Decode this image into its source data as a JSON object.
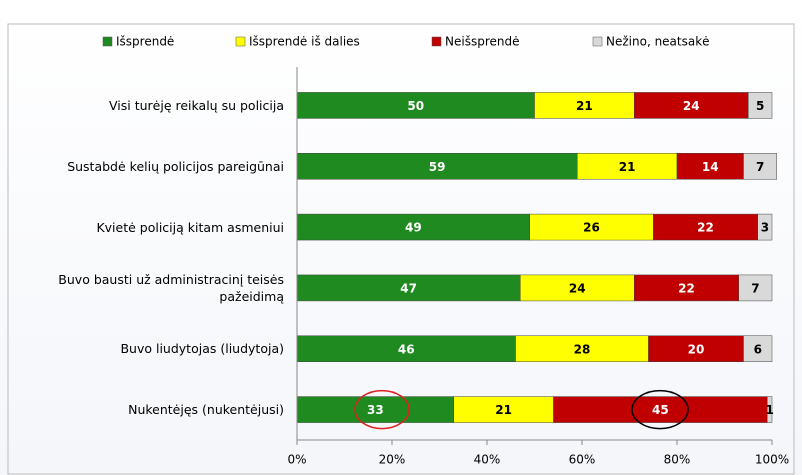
{
  "chart_data": {
    "type": "stacked-bar-horizontal",
    "categories": [
      "Visi turėję reikalų su policija",
      "Sustabdė kelių policijos pareigūnai",
      "Kvietė policiją kitam asmeniui",
      "Buvo bausti už administracinį teisės pažeidimą",
      "Buvo liudytojas (liudytoja)",
      "Nukentėjęs (nukentėjusi)"
    ],
    "series": [
      {
        "name": "Išsprendė",
        "color": "#1f8a1f",
        "values": [
          50,
          59,
          49,
          47,
          46,
          33
        ]
      },
      {
        "name": "Išsprendė iš dalies",
        "color": "#ffff00",
        "values": [
          21,
          21,
          26,
          24,
          28,
          21
        ]
      },
      {
        "name": "Neišsprendė",
        "color": "#c00000",
        "values": [
          24,
          14,
          22,
          22,
          20,
          45
        ]
      },
      {
        "name": "Nežino, neatsakė",
        "color": "#d9d9d9",
        "values": [
          5,
          7,
          3,
          7,
          6,
          1
        ]
      }
    ],
    "xlim": [
      0,
      100
    ],
    "xticks": [
      {
        "value": 0,
        "label": "0%"
      },
      {
        "value": 20,
        "label": "20%"
      },
      {
        "value": 40,
        "label": "40%"
      },
      {
        "value": 60,
        "label": "60%"
      },
      {
        "value": 80,
        "label": "80%"
      },
      {
        "value": 100,
        "label": "100%"
      }
    ],
    "legend": "top"
  }
}
